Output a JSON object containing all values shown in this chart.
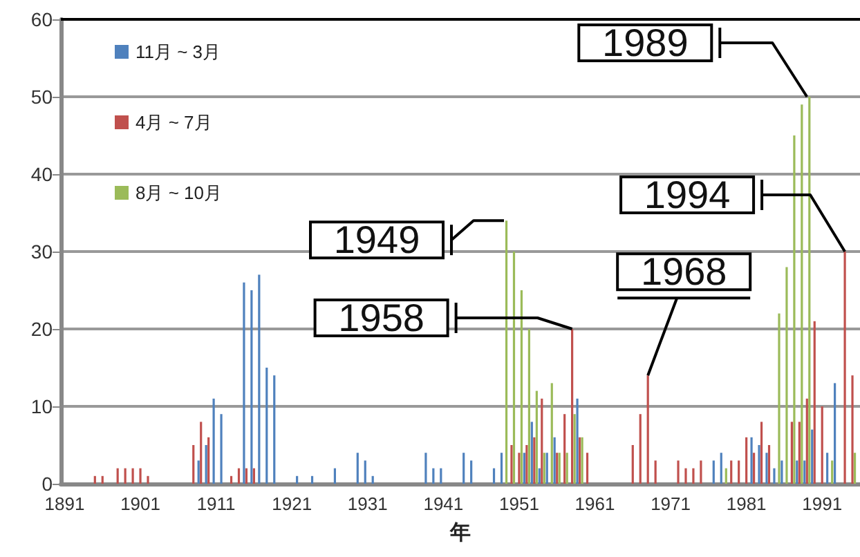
{
  "chart_data": {
    "type": "bar",
    "xlabel": "年",
    "x": [
      1891,
      1892,
      1893,
      1894,
      1895,
      1896,
      1897,
      1898,
      1899,
      1900,
      1901,
      1902,
      1903,
      1904,
      1905,
      1906,
      1907,
      1908,
      1909,
      1910,
      1911,
      1912,
      1913,
      1914,
      1915,
      1916,
      1917,
      1918,
      1919,
      1920,
      1921,
      1922,
      1923,
      1924,
      1925,
      1926,
      1927,
      1928,
      1929,
      1930,
      1931,
      1932,
      1933,
      1934,
      1935,
      1936,
      1937,
      1938,
      1939,
      1940,
      1941,
      1942,
      1943,
      1944,
      1945,
      1946,
      1947,
      1948,
      1949,
      1950,
      1951,
      1952,
      1953,
      1954,
      1955,
      1956,
      1957,
      1958,
      1959,
      1960,
      1961,
      1962,
      1963,
      1964,
      1965,
      1966,
      1967,
      1968,
      1969,
      1970,
      1971,
      1972,
      1973,
      1974,
      1975,
      1976,
      1977,
      1978,
      1979,
      1980,
      1981,
      1982,
      1983,
      1984,
      1985,
      1986,
      1987,
      1988,
      1989,
      1990,
      1991,
      1992,
      1993,
      1994,
      1995
    ],
    "series": [
      {
        "name": "11月 ~ 3月",
        "color": "#4f81bd",
        "values": [
          0,
          0,
          0,
          0,
          0,
          0,
          0,
          0,
          0,
          0,
          0,
          0,
          0,
          0,
          0,
          0,
          0,
          0,
          3,
          5,
          11,
          9,
          0,
          0,
          26,
          25,
          27,
          15,
          14,
          0,
          0,
          1,
          0,
          1,
          0,
          0,
          2,
          0,
          0,
          4,
          3,
          1,
          0,
          0,
          0,
          0,
          0,
          0,
          4,
          2,
          2,
          0,
          0,
          4,
          3,
          0,
          0,
          2,
          4,
          0,
          0,
          4,
          8,
          2,
          4,
          6,
          0,
          0,
          11,
          0,
          0,
          0,
          0,
          0,
          0,
          0,
          0,
          0,
          0,
          0,
          0,
          0,
          0,
          0,
          0,
          0,
          3,
          4,
          0,
          0,
          0,
          6,
          5,
          4,
          2,
          3,
          0,
          3,
          3,
          7,
          0,
          4,
          13,
          0,
          0
        ]
      },
      {
        "name": "4月 ~ 7月",
        "color": "#c0504d",
        "values": [
          0,
          0,
          0,
          0,
          1,
          1,
          0,
          2,
          2,
          2,
          2,
          1,
          0,
          0,
          0,
          0,
          0,
          5,
          8,
          6,
          0,
          0,
          1,
          2,
          2,
          2,
          0,
          0,
          0,
          0,
          0,
          0,
          0,
          0,
          0,
          0,
          0,
          0,
          0,
          0,
          0,
          0,
          0,
          0,
          0,
          0,
          0,
          0,
          0,
          0,
          0,
          0,
          0,
          0,
          0,
          0,
          0,
          0,
          0,
          5,
          4,
          5,
          6,
          11,
          0,
          4,
          9,
          20,
          6,
          4,
          0,
          0,
          0,
          0,
          0,
          5,
          9,
          14,
          3,
          0,
          0,
          3,
          2,
          2,
          3,
          0,
          0,
          0,
          3,
          3,
          6,
          4,
          8,
          5,
          0,
          0,
          8,
          8,
          11,
          21,
          10,
          0,
          0,
          30,
          14
        ]
      },
      {
        "name": "8月 ~ 10月",
        "color": "#9bbb59",
        "values": [
          0,
          0,
          0,
          0,
          0,
          0,
          0,
          0,
          0,
          0,
          0,
          0,
          0,
          0,
          0,
          0,
          0,
          0,
          0,
          0,
          0,
          0,
          0,
          0,
          0,
          0,
          0,
          0,
          0,
          0,
          0,
          0,
          0,
          0,
          0,
          0,
          0,
          0,
          0,
          0,
          0,
          0,
          0,
          0,
          0,
          0,
          0,
          0,
          0,
          0,
          0,
          0,
          0,
          0,
          0,
          0,
          0,
          0,
          34,
          30,
          25,
          20,
          12,
          4,
          13,
          4,
          4,
          9,
          6,
          0,
          0,
          0,
          0,
          0,
          0,
          0,
          0,
          0,
          0,
          0,
          0,
          0,
          0,
          0,
          0,
          0,
          0,
          2,
          0,
          0,
          0,
          0,
          0,
          0,
          22,
          28,
          45,
          49,
          50,
          0,
          0,
          3,
          0,
          0,
          4
        ]
      }
    ],
    "xlim": [
      1890.5,
      1996
    ],
    "xticks": [
      1891,
      1901,
      1911,
      1921,
      1931,
      1941,
      1951,
      1961,
      1971,
      1981,
      1991
    ],
    "ylim": [
      0,
      60
    ],
    "yticks": [
      0,
      10,
      20,
      30,
      40,
      50,
      60
    ],
    "grid": "y",
    "legend": "top left",
    "annotations": [
      {
        "text": "1949",
        "x": 1949,
        "y": 34
      },
      {
        "text": "1958",
        "x": 1958,
        "y": 20
      },
      {
        "text": "1968",
        "x": 1968,
        "y": 14
      },
      {
        "text": "1989",
        "x": 1989,
        "y": 50
      },
      {
        "text": "1994",
        "x": 1994,
        "y": 30
      }
    ]
  }
}
